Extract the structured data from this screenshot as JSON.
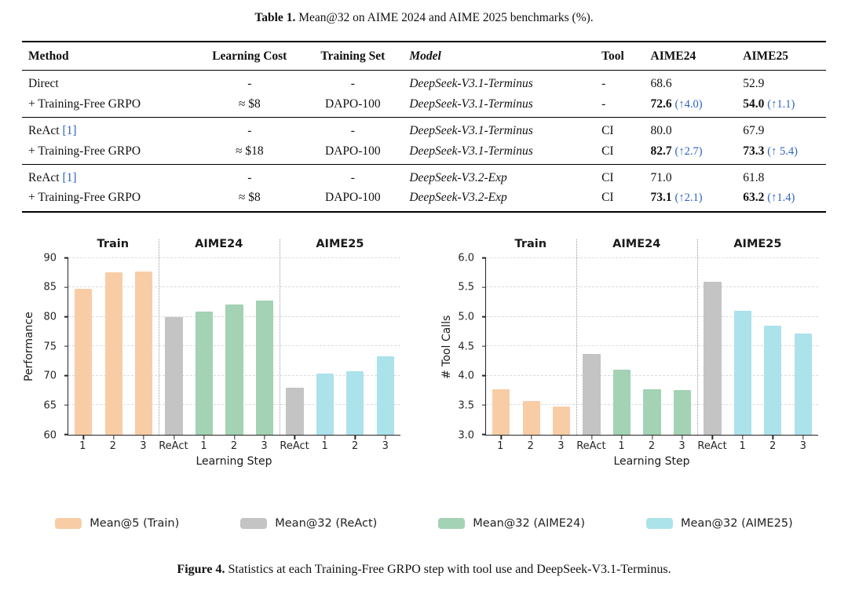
{
  "table": {
    "title_label": "Table 1.",
    "title_text": "Mean@32 on AIME 2024 and AIME 2025 benchmarks (%).",
    "columns": [
      "Method",
      "Learning Cost",
      "Training Set",
      "Model",
      "Tool",
      "AIME24",
      "AIME25"
    ],
    "groups": [
      {
        "rows": [
          {
            "method": "Direct",
            "cite": "",
            "cost": "-",
            "training_set": "-",
            "model": "DeepSeek-V3.1-Terminus",
            "tool": "-",
            "aime24": "68.6",
            "aime24_delta": "",
            "aime25": "52.9",
            "aime25_delta": "",
            "bold": false
          },
          {
            "method": "+ Training-Free GRPO",
            "cite": "",
            "cost": "≈ $8",
            "training_set": "DAPO-100",
            "model": "DeepSeek-V3.1-Terminus",
            "tool": "-",
            "aime24": "72.6",
            "aime24_delta": "(↑4.0)",
            "aime25": "54.0",
            "aime25_delta": "(↑1.1)",
            "bold": true
          }
        ]
      },
      {
        "rows": [
          {
            "method": "ReAct",
            "cite": "[1]",
            "cost": "-",
            "training_set": "-",
            "model": "DeepSeek-V3.1-Terminus",
            "tool": "CI",
            "aime24": "80.0",
            "aime24_delta": "",
            "aime25": "67.9",
            "aime25_delta": "",
            "bold": false
          },
          {
            "method": "+ Training-Free GRPO",
            "cite": "",
            "cost": "≈ $18",
            "training_set": "DAPO-100",
            "model": "DeepSeek-V3.1-Terminus",
            "tool": "CI",
            "aime24": "82.7",
            "aime24_delta": "(↑2.7)",
            "aime25": "73.3",
            "aime25_delta": "(↑ 5.4)",
            "bold": true
          }
        ]
      },
      {
        "rows": [
          {
            "method": "ReAct",
            "cite": "[1]",
            "cost": "-",
            "training_set": "-",
            "model": "DeepSeek-V3.2-Exp",
            "tool": "CI",
            "aime24": "71.0",
            "aime24_delta": "",
            "aime25": "61.8",
            "aime25_delta": "",
            "bold": false
          },
          {
            "method": "+ Training-Free GRPO",
            "cite": "",
            "cost": "≈ $8",
            "training_set": "DAPO-100",
            "model": "DeepSeek-V3.2-Exp",
            "tool": "CI",
            "aime24": "73.1",
            "aime24_delta": "(↑2.1)",
            "aime25": "63.2",
            "aime25_delta": "(↑1.4)",
            "bold": true
          }
        ]
      }
    ]
  },
  "chart_data": [
    {
      "type": "bar",
      "name": "performance",
      "ylabel": "Performance",
      "xlabel": "Learning Step",
      "ylim": [
        60,
        90
      ],
      "yticks": [
        "60",
        "65",
        "70",
        "75",
        "80",
        "85",
        "90"
      ],
      "grid": "dashed-horizontal",
      "sections": [
        {
          "label": "Train",
          "start": 0,
          "end": 3
        },
        {
          "label": "AIME24",
          "start": 3,
          "end": 7
        },
        {
          "label": "AIME25",
          "start": 7,
          "end": 11
        }
      ],
      "separators": [
        3,
        7
      ],
      "bars": [
        {
          "x": "1",
          "value": 84.7,
          "series": "train"
        },
        {
          "x": "2",
          "value": 87.5,
          "series": "train"
        },
        {
          "x": "3",
          "value": 87.7,
          "series": "train"
        },
        {
          "x": "ReAct",
          "value": 80.0,
          "series": "react"
        },
        {
          "x": "1",
          "value": 80.9,
          "series": "aime24"
        },
        {
          "x": "2",
          "value": 82.1,
          "series": "aime24"
        },
        {
          "x": "3",
          "value": 82.7,
          "series": "aime24"
        },
        {
          "x": "ReAct",
          "value": 67.9,
          "series": "react"
        },
        {
          "x": "1",
          "value": 70.3,
          "series": "aime25"
        },
        {
          "x": "2",
          "value": 70.8,
          "series": "aime25"
        },
        {
          "x": "3",
          "value": 73.3,
          "series": "aime25"
        }
      ]
    },
    {
      "type": "bar",
      "name": "tool-calls",
      "ylabel": "# Tool Calls",
      "xlabel": "Learning Step",
      "ylim": [
        3.0,
        6.0
      ],
      "yticks": [
        "3.0",
        "3.5",
        "4.0",
        "4.5",
        "5.0",
        "5.5",
        "6.0"
      ],
      "grid": "dashed-horizontal",
      "sections": [
        {
          "label": "Train",
          "start": 0,
          "end": 3
        },
        {
          "label": "AIME24",
          "start": 3,
          "end": 7
        },
        {
          "label": "AIME25",
          "start": 7,
          "end": 11
        }
      ],
      "separators": [
        3,
        7
      ],
      "bars": [
        {
          "x": "1",
          "value": 3.77,
          "series": "train"
        },
        {
          "x": "2",
          "value": 3.57,
          "series": "train"
        },
        {
          "x": "3",
          "value": 3.47,
          "series": "train"
        },
        {
          "x": "ReAct",
          "value": 4.37,
          "series": "react"
        },
        {
          "x": "1",
          "value": 4.1,
          "series": "aime24"
        },
        {
          "x": "2",
          "value": 3.77,
          "series": "aime24"
        },
        {
          "x": "3",
          "value": 3.75,
          "series": "aime24"
        },
        {
          "x": "ReAct",
          "value": 5.6,
          "series": "react"
        },
        {
          "x": "1",
          "value": 5.1,
          "series": "aime25"
        },
        {
          "x": "2",
          "value": 4.85,
          "series": "aime25"
        },
        {
          "x": "3",
          "value": 4.72,
          "series": "aime25"
        }
      ]
    }
  ],
  "legend": [
    {
      "label": "Mean@5 (Train)",
      "series": "train"
    },
    {
      "label": "Mean@32 (ReAct)",
      "series": "react"
    },
    {
      "label": "Mean@32 (AIME24)",
      "series": "aime24"
    },
    {
      "label": "Mean@32 (AIME25)",
      "series": "aime25"
    }
  ],
  "figure": {
    "caption_label": "Figure 4.",
    "caption_text": "Statistics at each Training-Free GRPO step with tool use and DeepSeek-V3.1-Terminus."
  },
  "colors": {
    "palette": {
      "train": "#f8cda6",
      "react": "#c4c4c4",
      "aime24": "#a3d2b4",
      "aime25": "#ace2ea"
    },
    "accent_blue": "#2e62c0",
    "grid": "#dcdcdc",
    "axis": "#262626"
  }
}
